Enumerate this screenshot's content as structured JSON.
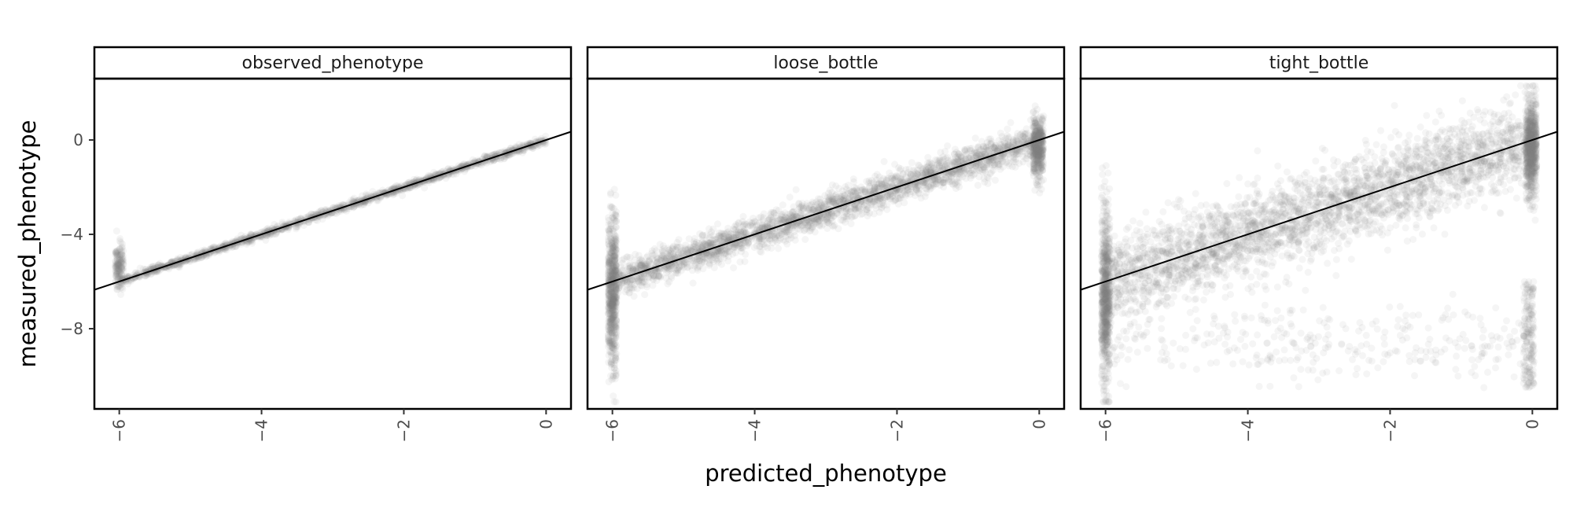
{
  "chart_data": {
    "type": "scatter",
    "xlabel": "predicted_phenotype",
    "ylabel": "measured_phenotype",
    "xlim": [
      -6.35,
      0.35
    ],
    "ylim": [
      -11.4,
      2.6
    ],
    "x_ticks": [
      -6,
      -4,
      -2,
      0
    ],
    "y_ticks": [
      0,
      -4,
      -8
    ],
    "x_tick_labels": [
      "−6",
      "−4",
      "−2",
      "0"
    ],
    "y_tick_labels": [
      "0",
      "−4",
      "−8"
    ],
    "reference_line": {
      "slope": 1,
      "intercept": 0
    },
    "point_color": "#808080",
    "point_alpha": 0.08,
    "panels": [
      {
        "title": "observed_phenotype",
        "description": "measured equals predicted with very small scatter",
        "x_range": [
          -6,
          0
        ],
        "spread_sd": 0.08,
        "floor_cluster": {
          "x": -6,
          "y_range": [
            -6.3,
            -4.3
          ]
        },
        "low_outliers": false
      },
      {
        "title": "loose_bottle",
        "description": "moderate scatter around the identity line, vertical spread at predicted -6 and 0",
        "x_range": [
          -6,
          0
        ],
        "spread_sd": 0.35,
        "floor_cluster": {
          "x": -6,
          "y_range": [
            -10.0,
            -3.0
          ]
        },
        "top_cluster": {
          "x": 0,
          "y_range": [
            -1.7,
            1.0
          ]
        },
        "low_outliers": false
      },
      {
        "title": "tight_bottle",
        "description": "wide scatter, large vertical spread at predicted -6 and 0, sparse low outliers near -8 to -10",
        "x_range": [
          -6,
          0
        ],
        "spread_sd": 0.9,
        "floor_cluster": {
          "x": -6,
          "y_range": [
            -10.5,
            -3.0
          ]
        },
        "top_cluster": {
          "x": 0,
          "y_range": [
            -2.5,
            2.0
          ]
        },
        "low_outliers": true,
        "low_outlier_y_range": [
          -10.5,
          -6.0
        ]
      }
    ]
  }
}
